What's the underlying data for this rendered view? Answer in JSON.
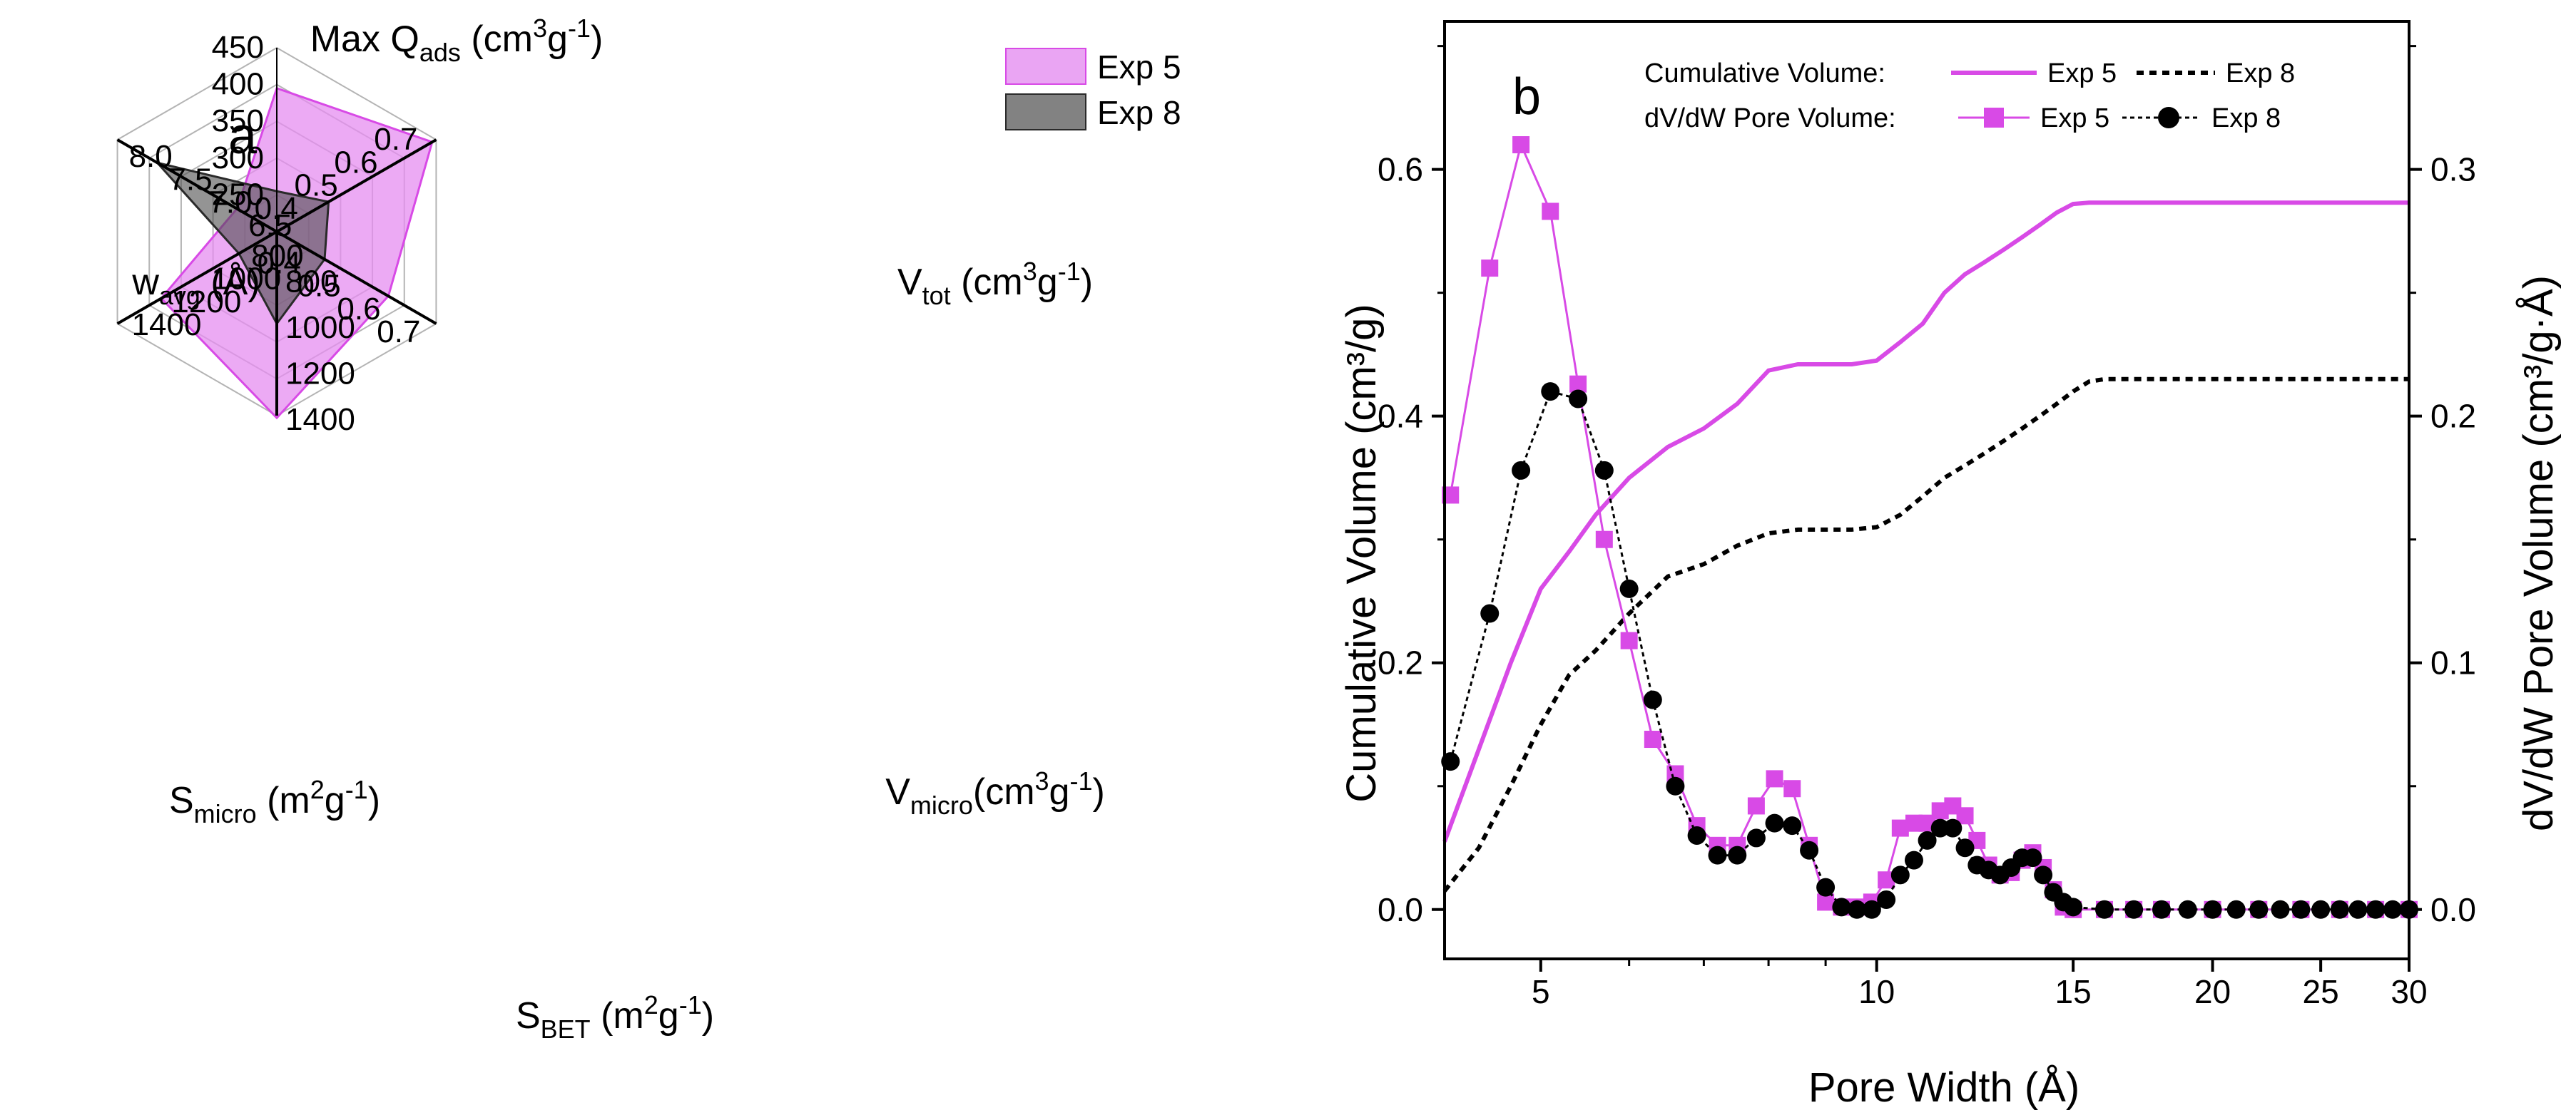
{
  "colors": {
    "exp5": "#d84ae6",
    "exp5_fill": "#e58ef0",
    "exp8": "#000000",
    "exp8_fill": "#4d4d4d",
    "grid": "#b4b4b4"
  },
  "chart_data": [
    {
      "type": "radar",
      "panel_label": "a",
      "legend": [
        "Exp 5",
        "Exp 8"
      ],
      "axes": [
        {
          "id": "q",
          "label_main": "Max Q",
          "label_sub": "ads",
          "label_unit_a": " (cm",
          "label_sup": "3",
          "label_unit_b": "g",
          "label_sup2": "-1",
          "label_unit_c": ")",
          "min": 200,
          "max": 450,
          "ticks": [
            250,
            300,
            350,
            400,
            450
          ],
          "tick_labels": [
            "250",
            "300",
            "350",
            "400",
            "450"
          ]
        },
        {
          "id": "vtot",
          "label_main": "V",
          "label_sub": "tot",
          "label_unit_a": " (cm",
          "label_sup": "3",
          "label_unit_b": "g",
          "label_sup2": "-1",
          "label_unit_c": ")",
          "min": 0.3,
          "max": 0.7,
          "ticks": [
            0.4,
            0.5,
            0.6,
            0.7
          ],
          "tick_labels": [
            "0.4",
            "0.5",
            "0.6",
            "0.7"
          ]
        },
        {
          "id": "vmicro",
          "label_main": "V",
          "label_sub": "micro",
          "label_unit_a": "(cm",
          "label_sup": "3",
          "label_unit_b": "g",
          "label_sup2": "-1",
          "label_unit_c": ")",
          "min": 0.3,
          "max": 0.7,
          "ticks": [
            0.4,
            0.5,
            0.6,
            0.7
          ],
          "tick_labels": [
            "0.4",
            "0.5",
            "0.6",
            "0.7"
          ]
        },
        {
          "id": "sbet",
          "label_main": "S",
          "label_sub": "BET",
          "label_unit_a": " (m",
          "label_sup": "2",
          "label_unit_b": "g",
          "label_sup2": "-1",
          "label_unit_c": ")",
          "min": 600,
          "max": 1400,
          "ticks": [
            800,
            1000,
            1200,
            1400
          ],
          "tick_labels": [
            "800",
            "1000",
            "1200",
            "1400"
          ]
        },
        {
          "id": "smicro",
          "label_main": "S",
          "label_sub": "micro",
          "label_unit_a": " (m",
          "label_sup": "2",
          "label_unit_b": "g",
          "label_sup2": "-1",
          "label_unit_c": ")",
          "min": 600,
          "max": 1400,
          "ticks": [
            800,
            1000,
            1200,
            1400
          ],
          "tick_labels": [
            "800",
            "1000",
            "1200",
            "1400"
          ]
        },
        {
          "id": "wavg",
          "label_main": "w",
          "label_sub": "avg",
          "label_unit_a": " (Å)",
          "label_sup": "",
          "label_unit_b": "",
          "label_sup2": "",
          "label_unit_c": "",
          "min": 6.0,
          "max": 8.0,
          "ticks": [
            6.5,
            7.0,
            7.5,
            8.0
          ],
          "tick_labels": [
            "6.5",
            "7.0",
            "7.5",
            "8.0"
          ]
        }
      ],
      "series": [
        {
          "name": "Exp 5",
          "values": [
            395,
            0.69,
            0.58,
            1410,
            1180,
            6.5
          ]
        },
        {
          "name": "Exp 8",
          "values": [
            255,
            0.43,
            0.42,
            1000,
            790,
            7.5
          ]
        }
      ]
    },
    {
      "type": "line",
      "panel_label": "b",
      "xlabel": "Pore Width (Å)",
      "ylabel": "Cumulative Volume (cm³/g)",
      "y2label": "dV/dW Pore Volume (cm³/g·Å)",
      "xscale": "log",
      "xlim": [
        4.1,
        30
      ],
      "ylim": [
        -0.04,
        0.72
      ],
      "y2lim": [
        -0.02,
        0.36
      ],
      "xticks": [
        5,
        10,
        15,
        20,
        25,
        30
      ],
      "xtick_labels": [
        "5",
        "10",
        "15",
        "20",
        "25",
        "30"
      ],
      "yticks": [
        0.0,
        0.2,
        0.4,
        0.6
      ],
      "ytick_labels": [
        "0.0",
        "0.2",
        "0.4",
        "0.6"
      ],
      "y2ticks": [
        0.0,
        0.1,
        0.2,
        0.3
      ],
      "y2tick_labels": [
        "0.0",
        "0.1",
        "0.2",
        "0.3"
      ],
      "legend": {
        "cum_title": "Cumulative Volume:",
        "pore_title": "dV/dW Pore Volume:",
        "exp5": "Exp 5",
        "exp8": "Exp 8"
      },
      "series": [
        {
          "name": "Cumulative Volume: Exp 5",
          "axis": "left",
          "style": "solid",
          "x": [
            4.1,
            4.4,
            4.7,
            5.0,
            5.3,
            5.6,
            6.0,
            6.5,
            7.0,
            7.5,
            8.0,
            8.5,
            9.0,
            9.5,
            10.0,
            10.5,
            11.0,
            11.5,
            12.0,
            12.5,
            13.0,
            13.5,
            14.0,
            14.5,
            15.0,
            15.5,
            16.0,
            18,
            20,
            25,
            30
          ],
          "y": [
            0.055,
            0.13,
            0.2,
            0.26,
            0.29,
            0.32,
            0.35,
            0.375,
            0.39,
            0.41,
            0.437,
            0.442,
            0.442,
            0.442,
            0.445,
            0.46,
            0.475,
            0.5,
            0.515,
            0.525,
            0.535,
            0.545,
            0.555,
            0.565,
            0.572,
            0.573,
            0.573,
            0.573,
            0.573,
            0.573,
            0.573
          ]
        },
        {
          "name": "Cumulative Volume: Exp 8",
          "axis": "left",
          "style": "dashed",
          "x": [
            4.1,
            4.4,
            4.7,
            5.0,
            5.3,
            5.6,
            6.0,
            6.5,
            7.0,
            7.5,
            8.0,
            8.5,
            9.0,
            9.5,
            10.0,
            10.5,
            11.0,
            11.5,
            12.0,
            12.5,
            13.0,
            13.5,
            14.0,
            14.5,
            15.0,
            15.5,
            16.0,
            18,
            20,
            25,
            30
          ],
          "y": [
            0.015,
            0.05,
            0.1,
            0.15,
            0.19,
            0.21,
            0.24,
            0.27,
            0.28,
            0.295,
            0.305,
            0.308,
            0.308,
            0.308,
            0.31,
            0.32,
            0.335,
            0.35,
            0.36,
            0.37,
            0.38,
            0.39,
            0.4,
            0.41,
            0.42,
            0.428,
            0.43,
            0.43,
            0.43,
            0.43,
            0.43
          ]
        },
        {
          "name": "dV/dW Pore Volume: Exp 5",
          "axis": "right",
          "style": "square",
          "x": [
            4.15,
            4.5,
            4.8,
            5.1,
            5.4,
            5.7,
            6.0,
            6.3,
            6.6,
            6.9,
            7.2,
            7.5,
            7.8,
            8.1,
            8.4,
            8.7,
            9.0,
            9.3,
            9.6,
            9.9,
            10.2,
            10.5,
            10.8,
            11.1,
            11.4,
            11.7,
            12.0,
            12.3,
            12.6,
            12.9,
            13.2,
            13.5,
            13.8,
            14.1,
            14.4,
            14.7,
            15.0,
            16.0,
            17.0,
            18.0,
            20.0,
            22.0,
            24.0,
            26.0,
            28.0,
            30.0
          ],
          "y": [
            0.168,
            0.26,
            0.31,
            0.283,
            0.213,
            0.15,
            0.109,
            0.069,
            0.055,
            0.034,
            0.026,
            0.026,
            0.042,
            0.053,
            0.049,
            0.026,
            0.003,
            0.001,
            0.001,
            0.003,
            0.012,
            0.033,
            0.035,
            0.035,
            0.04,
            0.042,
            0.038,
            0.028,
            0.018,
            0.014,
            0.015,
            0.02,
            0.023,
            0.017,
            0.008,
            0.001,
            0.0,
            0.0,
            0.0,
            0.0,
            0.0,
            0.0,
            0.0,
            0.0,
            0.0,
            0.0
          ]
        },
        {
          "name": "dV/dW Pore Volume: Exp 8",
          "axis": "right",
          "style": "circle",
          "x": [
            4.15,
            4.5,
            4.8,
            5.1,
            5.4,
            5.7,
            6.0,
            6.3,
            6.6,
            6.9,
            7.2,
            7.5,
            7.8,
            8.1,
            8.4,
            8.7,
            9.0,
            9.3,
            9.6,
            9.9,
            10.2,
            10.5,
            10.8,
            11.1,
            11.4,
            11.7,
            12.0,
            12.3,
            12.6,
            12.9,
            13.2,
            13.5,
            13.8,
            14.1,
            14.4,
            14.7,
            15.0,
            16.0,
            17.0,
            18.0,
            19.0,
            20.0,
            21.0,
            22.0,
            23.0,
            24.0,
            25.0,
            26.0,
            27.0,
            28.0,
            29.0,
            30.0
          ],
          "y": [
            0.06,
            0.12,
            0.178,
            0.21,
            0.207,
            0.178,
            0.13,
            0.085,
            0.05,
            0.03,
            0.022,
            0.022,
            0.029,
            0.035,
            0.034,
            0.024,
            0.009,
            0.001,
            0.0,
            0.0,
            0.004,
            0.014,
            0.02,
            0.028,
            0.033,
            0.033,
            0.025,
            0.018,
            0.016,
            0.014,
            0.017,
            0.021,
            0.021,
            0.014,
            0.007,
            0.003,
            0.001,
            0.0,
            0.0,
            0.0,
            0.0,
            0.0,
            0.0,
            0.0,
            0.0,
            0.0,
            0.0,
            0.0,
            0.0,
            0.0,
            0.0,
            0.0
          ]
        }
      ]
    }
  ]
}
